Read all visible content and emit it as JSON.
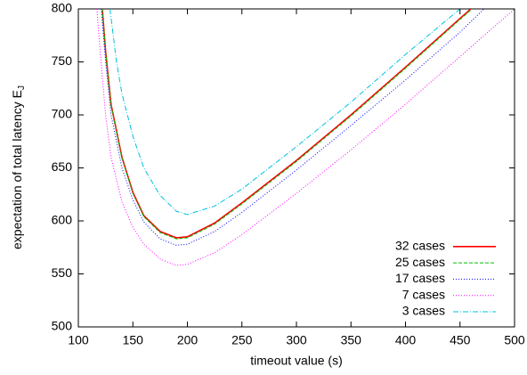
{
  "chart_data": {
    "type": "line",
    "xlabel": "timeout value (s)",
    "ylabel": "expectation of total latency E",
    "ylabel_subscript": "J",
    "xlim": [
      100,
      500
    ],
    "ylim": [
      500,
      800
    ],
    "xticks": [
      100,
      150,
      200,
      250,
      300,
      350,
      400,
      450,
      500
    ],
    "yticks": [
      500,
      550,
      600,
      650,
      700,
      750,
      800
    ],
    "legend": "bottom-right",
    "series": [
      {
        "name": "32 cases",
        "color": "#ff0000",
        "dash": "solid",
        "x": [
          122,
          125,
          130,
          140,
          150,
          160,
          175,
          190,
          200,
          225,
          250,
          300,
          350,
          400,
          450,
          460
        ],
        "values": [
          800,
          760,
          710,
          660,
          627,
          605,
          590,
          584,
          585,
          598,
          617,
          657,
          700,
          745,
          791,
          800
        ]
      },
      {
        "name": "25 cases",
        "color": "#00c000",
        "dash": "dashed",
        "x": [
          122,
          125,
          130,
          140,
          150,
          160,
          175,
          190,
          200,
          225,
          250,
          300,
          350,
          400,
          450,
          461
        ],
        "values": [
          800,
          759,
          709,
          659,
          626,
          604,
          589,
          583,
          584,
          597,
          616,
          656,
          699,
          744,
          790,
          800
        ]
      },
      {
        "name": "17 cases",
        "color": "#0000ff",
        "dash": "dotted",
        "x": [
          121,
          125,
          130,
          140,
          150,
          160,
          175,
          190,
          200,
          225,
          250,
          300,
          350,
          400,
          450,
          472
        ],
        "values": [
          800,
          750,
          700,
          650,
          620,
          599,
          583,
          577,
          578,
          590,
          608,
          648,
          690,
          733,
          778,
          800
        ]
      },
      {
        "name": "7 cases",
        "color": "#ff00ff",
        "dash": "dotted",
        "x": [
          117,
          120,
          125,
          130,
          140,
          150,
          160,
          175,
          190,
          200,
          225,
          250,
          300,
          350,
          400,
          450,
          500
        ],
        "values": [
          800,
          760,
          700,
          660,
          618,
          594,
          578,
          564,
          558,
          559,
          570,
          587,
          626,
          667,
          710,
          755,
          800
        ]
      },
      {
        "name": "3 cases",
        "color": "#00c0e0",
        "dash": "dashdot",
        "x": [
          129,
          135,
          140,
          150,
          160,
          175,
          190,
          200,
          225,
          250,
          300,
          350,
          400,
          450
        ],
        "values": [
          800,
          750,
          720,
          680,
          650,
          624,
          609,
          606,
          614,
          630,
          670,
          712,
          757,
          800
        ]
      }
    ]
  }
}
